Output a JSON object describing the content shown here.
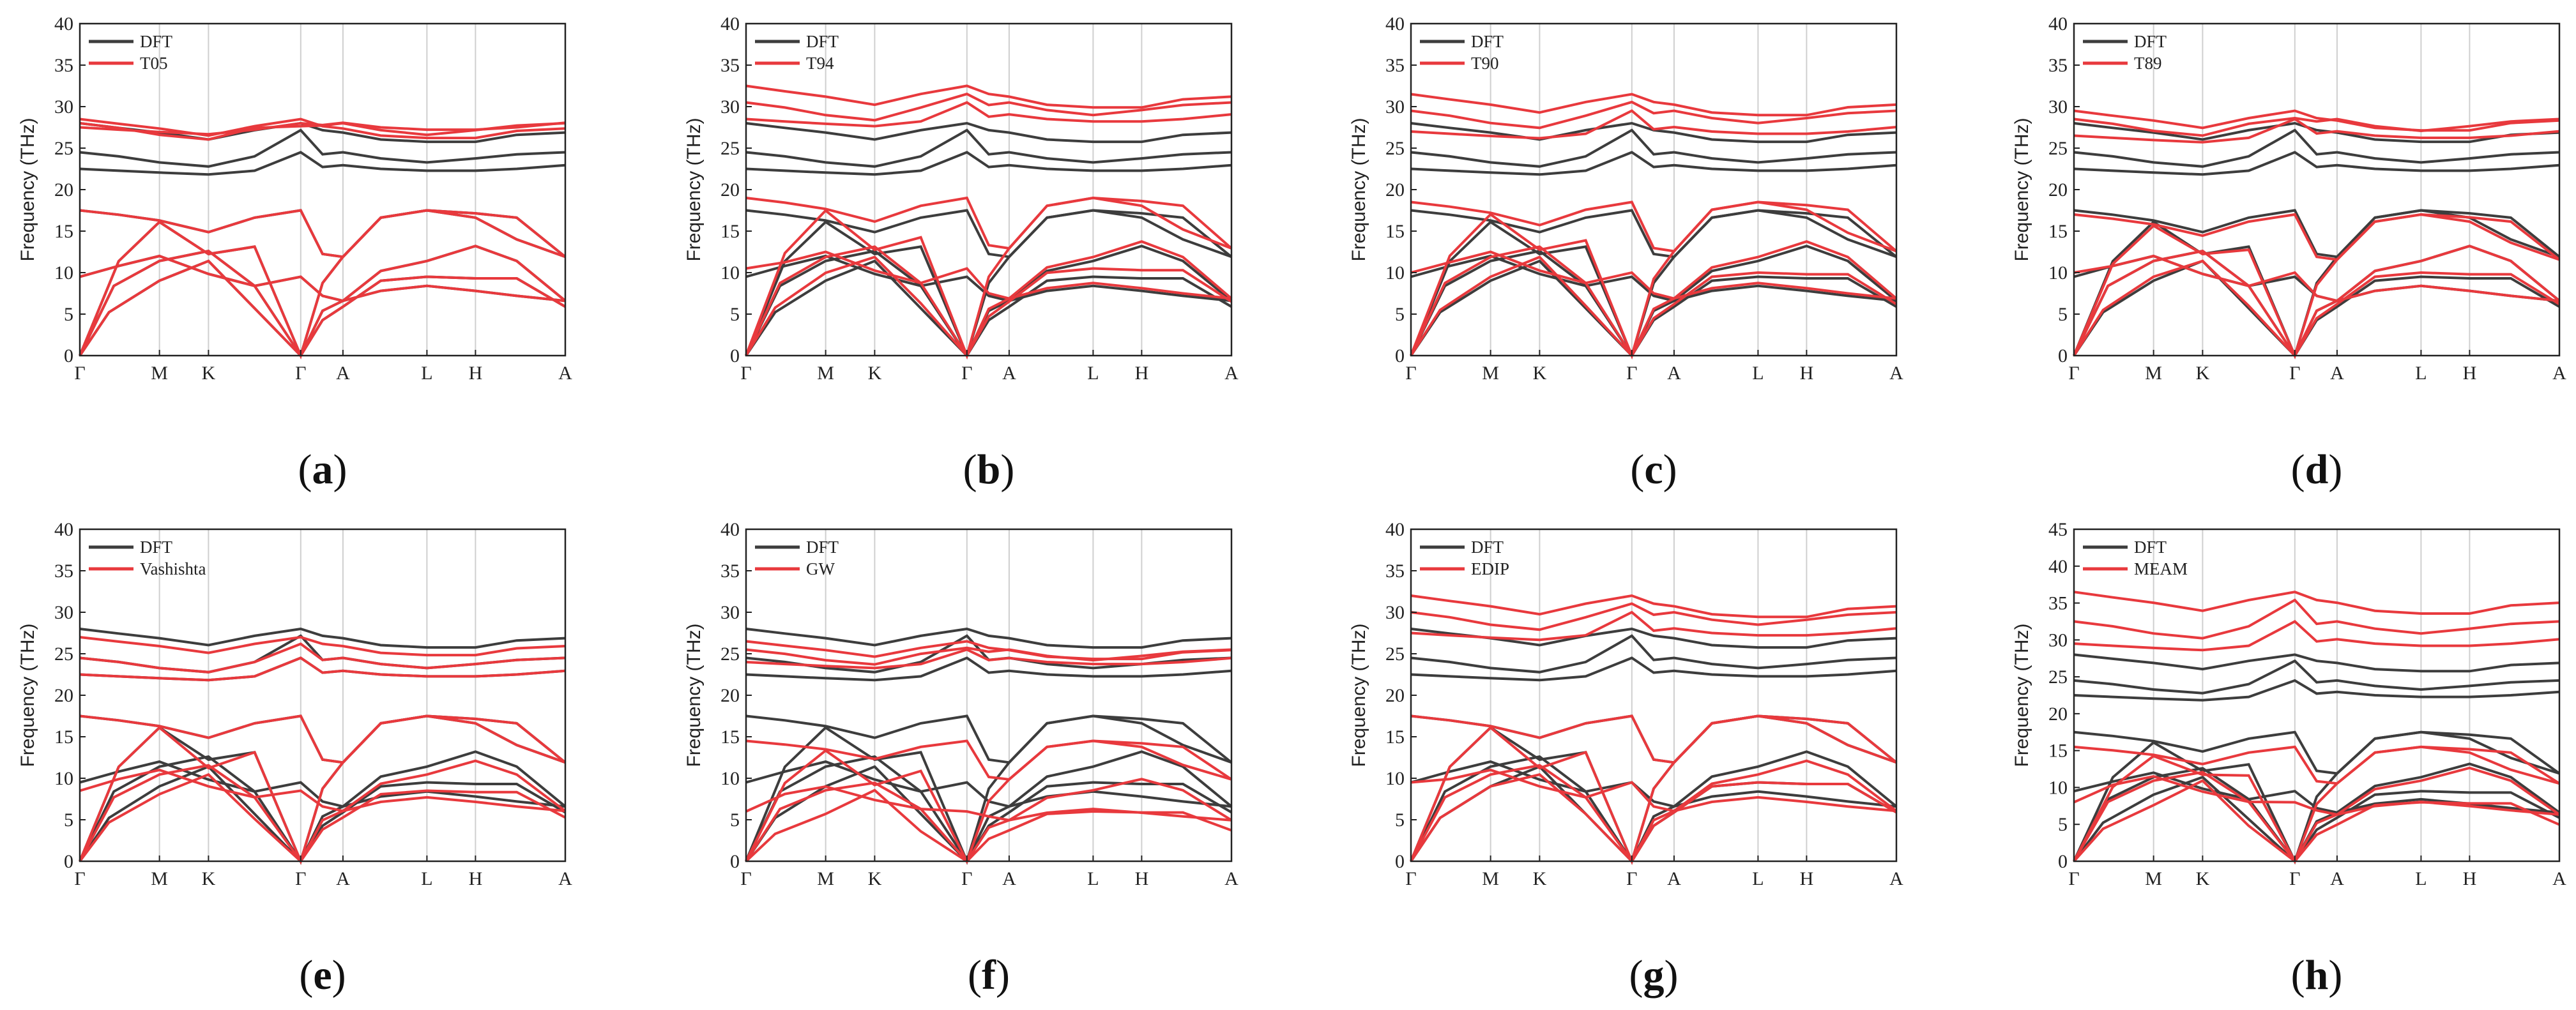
{
  "figure": {
    "y_axis_label": "Frequency (THz)",
    "x_tick_labels": [
      "Γ",
      "M",
      "K",
      "Γ",
      "A",
      "L",
      "H",
      "A"
    ],
    "colors": {
      "dft": "#3d3d3d",
      "model": "#e8393d",
      "grid": "#cfcfcf",
      "axis": "#222222"
    }
  },
  "chart_data": [
    {
      "type": "line",
      "panel": "a",
      "label_open": "(",
      "label_letter": "a",
      "label_close": ")",
      "xlabel": "",
      "ylabel": "Frequency (THz)",
      "ylim": [
        0,
        40
      ],
      "yticks": [
        0,
        5,
        10,
        15,
        20,
        25,
        30,
        35,
        40
      ],
      "legend": [
        "DFT",
        "T05"
      ],
      "model_optical": [
        27.5,
        28.0,
        28.5
      ],
      "model_acoustic": [
        17.5,
        12.0,
        9.5
      ]
    },
    {
      "type": "line",
      "panel": "b",
      "label_open": "(",
      "label_letter": "b",
      "label_close": ")",
      "xlabel": "",
      "ylabel": "Frequency (THz)",
      "ylim": [
        0,
        40
      ],
      "yticks": [
        0,
        5,
        10,
        15,
        20,
        25,
        30,
        35,
        40
      ],
      "legend": [
        "DFT",
        "T94"
      ],
      "model_optical": [
        28.5,
        30.5,
        32.5
      ],
      "model_acoustic": [
        19.0,
        12.5,
        10.5
      ]
    },
    {
      "type": "line",
      "panel": "c",
      "label_open": "(",
      "label_letter": "c",
      "label_close": ")",
      "xlabel": "",
      "ylabel": "Frequency (THz)",
      "ylim": [
        0,
        40
      ],
      "yticks": [
        0,
        5,
        10,
        15,
        20,
        25,
        30,
        35,
        40
      ],
      "legend": [
        "DFT",
        "T90"
      ],
      "model_optical": [
        27.0,
        29.5,
        31.5
      ],
      "model_acoustic": [
        18.5,
        12.5,
        10.0
      ]
    },
    {
      "type": "line",
      "panel": "d",
      "label_open": "(",
      "label_letter": "d",
      "label_close": ")",
      "xlabel": "",
      "ylabel": "Frequency (THz)",
      "ylim": [
        0,
        40
      ],
      "yticks": [
        0,
        5,
        10,
        15,
        20,
        25,
        30,
        35,
        40
      ],
      "legend": [
        "DFT",
        "T89"
      ],
      "model_optical": [
        26.5,
        28.5,
        29.5
      ],
      "model_acoustic": [
        17.0,
        12.0,
        10.0
      ]
    },
    {
      "type": "line",
      "panel": "e",
      "label_open": "(",
      "label_letter": "e",
      "label_close": ")",
      "xlabel": "",
      "ylabel": "Frequency (THz)",
      "ylim": [
        0,
        40
      ],
      "yticks": [
        0,
        5,
        10,
        15,
        20,
        25,
        30,
        35,
        40
      ],
      "legend": [
        "DFT",
        "Vashishta"
      ],
      "model_optical": [
        22.5,
        24.5,
        27.0
      ],
      "model_acoustic": [
        17.5,
        11.0,
        8.5
      ]
    },
    {
      "type": "line",
      "panel": "f",
      "label_open": "(",
      "label_letter": "f",
      "label_close": ")",
      "xlabel": "",
      "ylabel": "Frequency (THz)",
      "ylim": [
        0,
        40
      ],
      "yticks": [
        0,
        5,
        10,
        15,
        20,
        25,
        30,
        35,
        40
      ],
      "legend": [
        "DFT",
        "GW"
      ],
      "model_optical": [
        24.0,
        25.5,
        26.5
      ],
      "model_acoustic": [
        14.5,
        9.0,
        6.0
      ]
    },
    {
      "type": "line",
      "panel": "g",
      "label_open": "(",
      "label_letter": "g",
      "label_close": ")",
      "xlabel": "",
      "ylabel": "Frequency (THz)",
      "ylim": [
        0,
        40
      ],
      "yticks": [
        0,
        5,
        10,
        15,
        20,
        25,
        30,
        35,
        40
      ],
      "legend": [
        "DFT",
        "EDIP"
      ],
      "model_optical": [
        27.5,
        30.0,
        32.0
      ],
      "model_acoustic": [
        17.5,
        11.0,
        9.5
      ]
    },
    {
      "type": "line",
      "panel": "h",
      "label_open": "(",
      "label_letter": "h",
      "label_close": ")",
      "xlabel": "",
      "ylabel": "Frequency (THz)",
      "ylim": [
        0,
        45
      ],
      "yticks": [
        0,
        5,
        10,
        15,
        20,
        25,
        30,
        35,
        40,
        45
      ],
      "legend": [
        "DFT",
        "MEAM"
      ],
      "model_optical": [
        29.5,
        32.5,
        36.5
      ],
      "model_acoustic": [
        15.5,
        11.5,
        8.0
      ]
    }
  ]
}
